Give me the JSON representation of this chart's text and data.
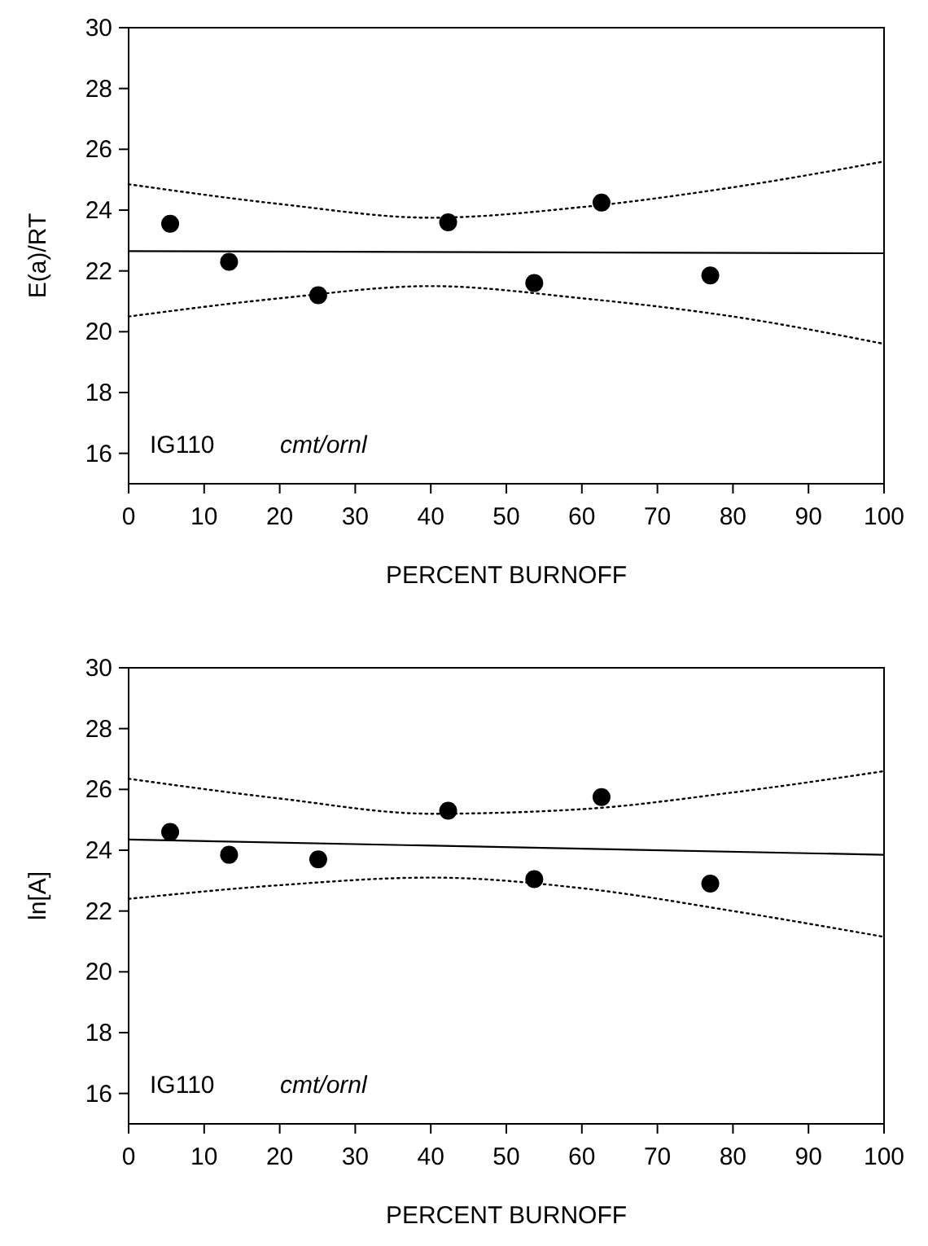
{
  "chart_data": [
    {
      "type": "scatter",
      "xlabel": "PERCENT BURNOFF",
      "ylabel": "E(a)/RT",
      "annotations": [
        "IG110",
        "cmt/ornl"
      ],
      "xlim": [
        0,
        100
      ],
      "ylim": [
        15,
        30
      ],
      "xticks": [
        0,
        10,
        20,
        30,
        40,
        50,
        60,
        70,
        80,
        90,
        100
      ],
      "yticks": [
        16,
        18,
        20,
        22,
        24,
        26,
        28,
        30
      ],
      "grid": false,
      "series": [
        {
          "color": "#000000",
          "marker": "circle",
          "x": [
            5.5,
            13.3,
            25.1,
            42.3,
            53.7,
            62.6,
            77
          ],
          "values": [
            23.55,
            22.3,
            21.2,
            23.6,
            21.6,
            24.25,
            21.85
          ]
        },
        {
          "type": "line",
          "color": "#000000",
          "marker": "none",
          "line_style": "solid",
          "x": [
            0,
            100
          ],
          "values": [
            22.65,
            22.58
          ]
        },
        {
          "type": "line",
          "color": "#000000",
          "marker": "none",
          "line_style": "dotted",
          "x": [
            0,
            20,
            40,
            60,
            80,
            100
          ],
          "values": [
            24.85,
            24.2,
            23.75,
            24.1,
            24.75,
            25.6
          ]
        },
        {
          "type": "line",
          "color": "#000000",
          "marker": "none",
          "line_style": "dotted",
          "x": [
            0,
            20,
            40,
            60,
            80,
            100
          ],
          "values": [
            20.5,
            21.1,
            21.5,
            21.1,
            20.5,
            19.6
          ]
        }
      ]
    },
    {
      "type": "scatter",
      "xlabel": "PERCENT BURNOFF",
      "ylabel": "ln[A]",
      "annotations": [
        "IG110",
        "cmt/ornl"
      ],
      "xlim": [
        0,
        100
      ],
      "ylim": [
        15,
        30
      ],
      "xticks": [
        0,
        10,
        20,
        30,
        40,
        50,
        60,
        70,
        80,
        90,
        100
      ],
      "yticks": [
        16,
        18,
        20,
        22,
        24,
        26,
        28,
        30
      ],
      "grid": false,
      "series": [
        {
          "color": "#000000",
          "marker": "circle",
          "x": [
            5.5,
            13.3,
            25.1,
            42.3,
            53.7,
            62.6,
            77
          ],
          "values": [
            24.6,
            23.85,
            23.7,
            25.3,
            23.05,
            25.75,
            22.9
          ]
        },
        {
          "type": "line",
          "color": "#000000",
          "marker": "none",
          "line_style": "solid",
          "x": [
            0,
            100
          ],
          "values": [
            24.35,
            23.85
          ]
        },
        {
          "type": "line",
          "color": "#000000",
          "marker": "none",
          "line_style": "dotted",
          "x": [
            0,
            20,
            40,
            60,
            80,
            100
          ],
          "values": [
            26.35,
            25.7,
            25.2,
            25.35,
            25.9,
            26.6
          ]
        },
        {
          "type": "line",
          "color": "#000000",
          "marker": "none",
          "line_style": "dotted",
          "x": [
            0,
            20,
            40,
            60,
            80,
            100
          ],
          "values": [
            22.4,
            22.85,
            23.1,
            22.75,
            22.0,
            21.15
          ]
        }
      ]
    }
  ]
}
